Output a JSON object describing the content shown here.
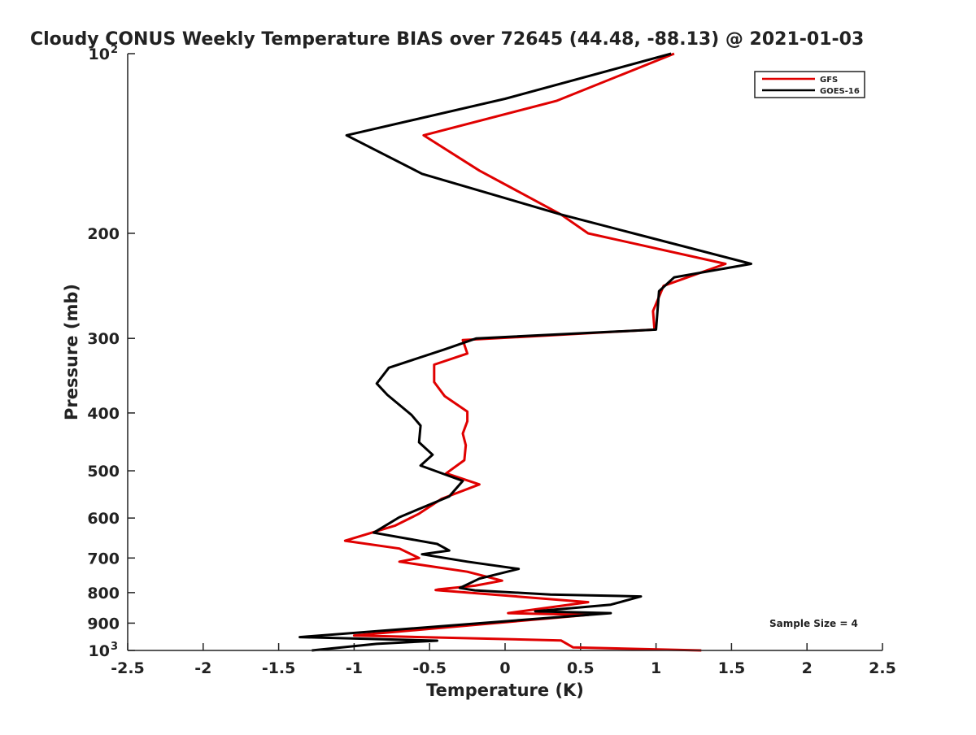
{
  "chart_data": {
    "type": "line",
    "title": "Cloudy CONUS Weekly Temperature BIAS over 72645 (44.48, -88.13) @ 2021-01-03",
    "xlabel": "Temperature (K)",
    "ylabel": "Pressure (mb)",
    "xlim": [
      -2.5,
      2.5
    ],
    "ylim": [
      100,
      1000
    ],
    "y_scale": "log",
    "y_reversed": true,
    "grid": false,
    "x_ticks": [
      -2.5,
      -2,
      -1.5,
      -1,
      -0.5,
      0,
      0.5,
      1,
      1.5,
      2,
      2.5
    ],
    "x_tick_labels": [
      "-2.5",
      "-2",
      "-1.5",
      "-1",
      "-0.5",
      "0",
      "0.5",
      "1",
      "1.5",
      "2",
      "2.5"
    ],
    "y_ticks": [
      100,
      200,
      300,
      400,
      500,
      600,
      700,
      800,
      900,
      1000
    ],
    "y_tick_labels": [
      {
        "base": "10",
        "exp": "2"
      },
      {
        "base": "200",
        "exp": ""
      },
      {
        "base": "300",
        "exp": ""
      },
      {
        "base": "400",
        "exp": ""
      },
      {
        "base": "500",
        "exp": ""
      },
      {
        "base": "600",
        "exp": ""
      },
      {
        "base": "700",
        "exp": ""
      },
      {
        "base": "800",
        "exp": ""
      },
      {
        "base": "900",
        "exp": ""
      },
      {
        "base": "10",
        "exp": "3"
      }
    ],
    "legend_position": "top-right",
    "annotation": "Sample Size = 4",
    "series": [
      {
        "name": "GFS",
        "color": "#e00000",
        "x": [
          1.12,
          0.34,
          -0.54,
          -0.17,
          0.37,
          0.55,
          1.46,
          1.05,
          0.98,
          0.99,
          -0.28,
          -0.25,
          -0.47,
          -0.47,
          -0.4,
          -0.25,
          -0.25,
          -0.28,
          -0.26,
          -0.27,
          -0.39,
          -0.17,
          -0.42,
          -0.57,
          -0.73,
          -1.06,
          -0.7,
          -0.57,
          -0.7,
          -0.25,
          -0.02,
          -0.2,
          -0.44,
          -0.46,
          0.55,
          0.02,
          0.55,
          -1.0,
          0.37,
          0.45,
          1.3
        ],
        "y": [
          100,
          120,
          137,
          157,
          186,
          200,
          225,
          245,
          270,
          290,
          302,
          318,
          332,
          355,
          375,
          398,
          413,
          433,
          453,
          480,
          505,
          527,
          557,
          590,
          618,
          655,
          675,
          700,
          710,
          738,
          764,
          779,
          790,
          792,
          830,
          866,
          872,
          944,
          962,
          988,
          1000
        ]
      },
      {
        "name": "GOES-16",
        "color": "#000000",
        "x": [
          1.1,
          0.0,
          -1.05,
          -0.55,
          0.37,
          0.85,
          1.63,
          1.12,
          1.02,
          1.0,
          -0.19,
          -0.4,
          -0.77,
          -0.85,
          -0.78,
          -0.62,
          -0.56,
          -0.57,
          -0.48,
          -0.56,
          -0.28,
          -0.37,
          -0.7,
          -0.87,
          -0.45,
          -0.37,
          -0.55,
          -0.25,
          0.09,
          -0.17,
          -0.3,
          -0.2,
          0.3,
          0.9,
          0.7,
          0.2,
          0.7,
          -1.36,
          -0.45,
          -0.85,
          -1.28
        ],
        "y": [
          100,
          119,
          137,
          159,
          186,
          200,
          225,
          237,
          250,
          290,
          300,
          313,
          336,
          357,
          373,
          403,
          420,
          448,
          470,
          490,
          520,
          552,
          598,
          635,
          663,
          680,
          690,
          710,
          730,
          758,
          786,
          793,
          806,
          812,
          838,
          860,
          866,
          950,
          963,
          975,
          1000
        ]
      }
    ]
  }
}
